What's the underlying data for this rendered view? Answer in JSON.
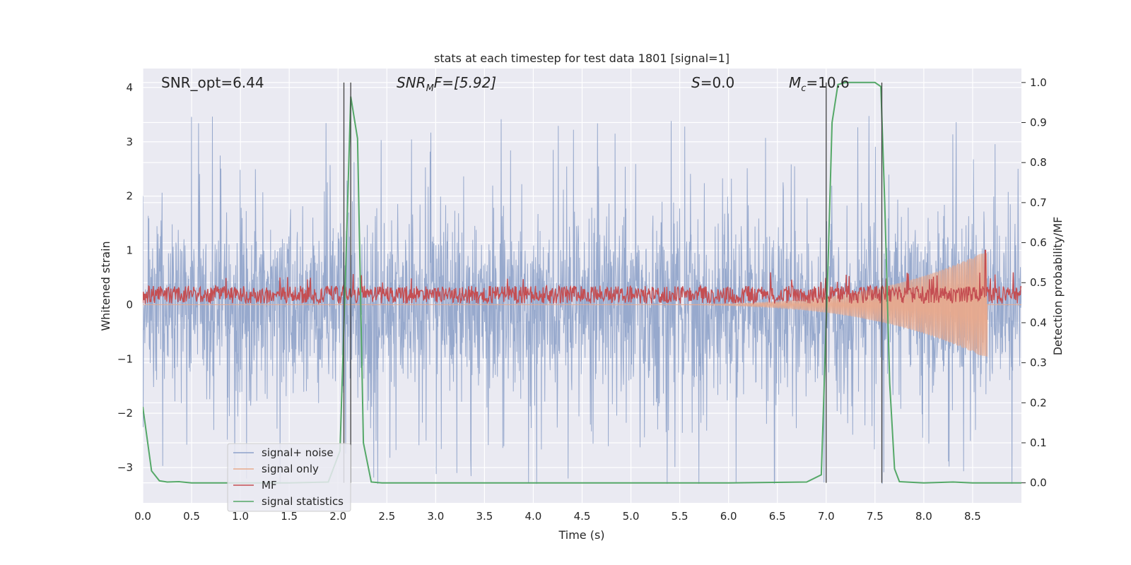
{
  "chart_data": {
    "type": "line",
    "title": "stats at each timestep for test data 1801 [signal=1]",
    "xlabel": "Time (s)",
    "ylabel_left": "Whitened strain",
    "ylabel_right": "Detection probability/MF",
    "xlim": [
      0,
      9
    ],
    "ylim_left": [
      -3.65,
      4.35
    ],
    "ylim_right": [
      -0.05,
      1.035
    ],
    "x_ticks": [
      0.0,
      0.5,
      1.0,
      1.5,
      2.0,
      2.5,
      3.0,
      3.5,
      4.0,
      4.5,
      5.0,
      5.5,
      6.0,
      6.5,
      7.0,
      7.5,
      8.0,
      8.5
    ],
    "x_tick_labels": [
      "0.0",
      "0.5",
      "1.0",
      "1.5",
      "2.0",
      "2.5",
      "3.0",
      "3.5",
      "4.0",
      "4.5",
      "5.0",
      "5.5",
      "6.0",
      "6.5",
      "7.0",
      "7.5",
      "8.0",
      "8.5"
    ],
    "y_left_ticks": [
      -3,
      -2,
      -1,
      0,
      1,
      2,
      3,
      4
    ],
    "y_left_tick_labels": [
      "−3",
      "−2",
      "−1",
      "0",
      "1",
      "2",
      "3",
      "4"
    ],
    "y_right_ticks": [
      0.0,
      0.1,
      0.2,
      0.3,
      0.4,
      0.5,
      0.6,
      0.7,
      0.8,
      0.9,
      1.0
    ],
    "y_right_tick_labels": [
      "0.0",
      "0.1",
      "0.2",
      "0.3",
      "0.4",
      "0.5",
      "0.6",
      "0.7",
      "0.8",
      "0.9",
      "1.0"
    ],
    "annotations": {
      "snr_opt": "SNR_opt=6.44",
      "snr_mf_base": "SNR",
      "snr_mf_sub": "M",
      "snr_mf_rest": "F=[5.92]",
      "s_italic": "S",
      "s_rest": "=0.0",
      "mc_base": "M",
      "mc_sub": "c",
      "mc_rest": "=10.6"
    },
    "vlines_x": [
      2.06,
      2.13,
      7.0,
      7.57
    ],
    "legend": {
      "location": "lower-left",
      "entries": [
        {
          "label": "signal+ noise",
          "color": "#8ea2c9"
        },
        {
          "label": "signal only",
          "color": "#e8a98c"
        },
        {
          "label": "MF",
          "color": "#c44e52"
        },
        {
          "label": "signal statistics",
          "color": "#55a868"
        }
      ]
    },
    "series": [
      {
        "name": "signal+ noise",
        "axis": "left",
        "color": "#8ea2c9",
        "kind": "noise",
        "description": "dense whitened strain trace, mostly within -1.8..1.8 with spikes to -3.3 and 3.6"
      },
      {
        "name": "signal only",
        "axis": "left",
        "color": "#e8a98c",
        "kind": "chirp",
        "chirp_start_s": 5.0,
        "chirp_end_s": 8.65,
        "peak_amplitude": 1.0
      },
      {
        "name": "MF",
        "axis": "left",
        "color": "#c44e52",
        "kind": "band",
        "band": [
          0.02,
          0.35
        ],
        "spike_x": 8.63,
        "spike_value": 1.0
      },
      {
        "name": "signal statistics",
        "axis": "right",
        "color": "#55a868",
        "kind": "line",
        "x": [
          0.0,
          0.09,
          0.17,
          0.25,
          0.37,
          0.5,
          1.0,
          1.5,
          1.9,
          2.02,
          2.08,
          2.13,
          2.2,
          2.26,
          2.34,
          2.45,
          3.0,
          4.0,
          5.0,
          6.0,
          6.8,
          6.95,
          7.02,
          7.06,
          7.12,
          7.2,
          7.3,
          7.5,
          7.56,
          7.6,
          7.65,
          7.7,
          7.75,
          8.0,
          8.3,
          8.5,
          9.0
        ],
        "y": [
          0.19,
          0.03,
          0.005,
          0.002,
          0.003,
          0.0,
          0.0,
          0.0,
          0.002,
          0.08,
          0.55,
          0.965,
          0.86,
          0.1,
          0.002,
          0.0,
          0.0,
          0.0,
          0.0,
          0.0,
          0.002,
          0.02,
          0.55,
          0.9,
          0.995,
          1.0,
          1.0,
          1.0,
          0.99,
          0.7,
          0.25,
          0.035,
          0.003,
          0.0,
          0.002,
          0.0,
          0.0
        ]
      }
    ]
  }
}
